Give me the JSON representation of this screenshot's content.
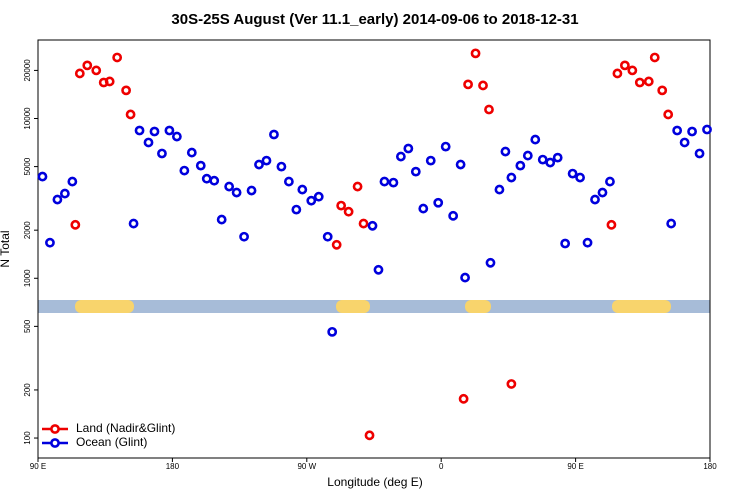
{
  "chart_data": {
    "type": "scatter",
    "title": "30S-25S August (Ver 11.1_early)   2014-09-06 to 2018-12-31",
    "x_label": "Longitude (deg E)",
    "y_label": "N Total",
    "log_y": true,
    "legend": "bottom-left",
    "xlim": [
      90,
      540
    ],
    "xticks": [
      {
        "value": 90,
        "label": "90 E"
      },
      {
        "value": 180,
        "label": "180"
      },
      {
        "value": 270,
        "label": "90 W"
      },
      {
        "value": 360,
        "label": "0"
      },
      {
        "value": 450,
        "label": "90 E"
      },
      {
        "value": 540,
        "label": "180"
      }
    ],
    "ylim": [
      75,
      31000
    ],
    "yticks": [
      100,
      200,
      500,
      1000,
      2000,
      5000,
      10000,
      20000
    ],
    "series": [
      {
        "name": "Land (Nadir&Glint)",
        "color": "#ee0000",
        "x": [
          115,
          118,
          123,
          129,
          134,
          138,
          143,
          149,
          152,
          290,
          293,
          298,
          304,
          308,
          312,
          375,
          378,
          383,
          388,
          392,
          407,
          474,
          478,
          483,
          488,
          493,
          499,
          503,
          508,
          512
        ],
        "values": [
          2160,
          19140,
          21500,
          20000,
          16800,
          17060,
          24100,
          15000,
          10600,
          1620,
          2850,
          2610,
          3750,
          2200,
          104,
          176,
          16350,
          25570,
          16100,
          11380,
          218,
          2160,
          19140,
          21500,
          20000,
          16800,
          17060,
          24100,
          15000,
          10600
        ]
      },
      {
        "name": "Ocean (Glint)",
        "color": "#0000dd",
        "x": [
          93,
          98,
          103,
          108,
          113,
          154,
          158,
          164,
          168,
          173,
          178,
          183,
          188,
          193,
          199,
          203,
          208,
          213,
          218,
          223,
          228,
          233,
          238,
          243,
          248,
          253,
          258,
          263,
          267,
          273,
          278,
          284,
          287,
          314,
          318,
          322,
          328,
          333,
          338,
          343,
          348,
          353,
          358,
          363,
          368,
          373,
          376,
          393,
          399,
          403,
          407,
          413,
          418,
          423,
          428,
          433,
          438,
          443,
          448,
          453,
          458,
          463,
          468,
          473,
          514,
          518,
          523,
          528,
          533,
          538
        ],
        "values": [
          4330,
          1670,
          3110,
          3390,
          4030,
          2200,
          8410,
          7080,
          8290,
          6040,
          8410,
          7710,
          4720,
          6120,
          5070,
          4200,
          4080,
          2330,
          3750,
          3440,
          1820,
          3540,
          5150,
          5450,
          7940,
          5000,
          4030,
          2690,
          3590,
          3060,
          3240,
          1820,
          462,
          2130,
          1130,
          4030,
          3970,
          5780,
          6490,
          4650,
          2730,
          5450,
          2970,
          6670,
          2460,
          5150,
          1010,
          1250,
          3590,
          6210,
          4270,
          5070,
          5860,
          7380,
          5530,
          5300,
          5690,
          1650,
          4520,
          4270,
          1670,
          3110,
          3440,
          4030,
          2200,
          8410,
          7080,
          8290,
          6040,
          8530
        ]
      }
    ]
  }
}
